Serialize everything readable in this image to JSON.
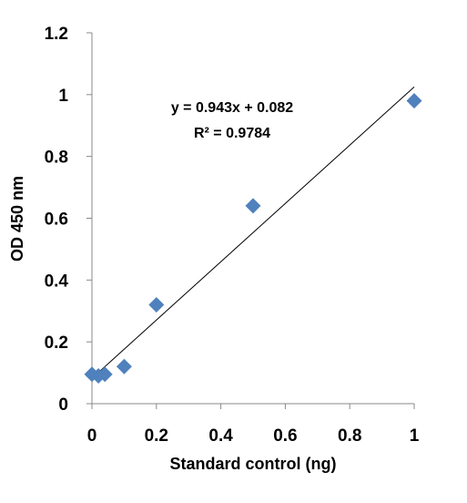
{
  "chart_data": {
    "type": "scatter",
    "xlabel": "Standard control (ng)",
    "ylabel": "OD 450 nm",
    "xlim": [
      0,
      1
    ],
    "ylim": [
      0,
      1.2
    ],
    "x_ticks": [
      "0",
      "0.2",
      "0.4",
      "0.6",
      "0.8",
      "1"
    ],
    "y_ticks": [
      "0",
      "0.2",
      "0.4",
      "0.6",
      "0.8",
      "1",
      "1.2"
    ],
    "series": [
      {
        "marker": "diamond",
        "color": "#4F81BD",
        "points": [
          {
            "x": 0.0,
            "y": 0.095
          },
          {
            "x": 0.02,
            "y": 0.09
          },
          {
            "x": 0.04,
            "y": 0.095
          },
          {
            "x": 0.1,
            "y": 0.12
          },
          {
            "x": 0.2,
            "y": 0.32
          },
          {
            "x": 0.5,
            "y": 0.64
          },
          {
            "x": 1.0,
            "y": 0.98
          }
        ]
      }
    ],
    "trendline": {
      "slope": 0.943,
      "intercept": 0.082,
      "x_range": [
        0,
        1
      ],
      "color": "#000000"
    },
    "annotations": {
      "equation": "y = 0.943x + 0.082",
      "r_squared": "R² = 0.9784"
    },
    "grid": false,
    "legend": "none"
  }
}
